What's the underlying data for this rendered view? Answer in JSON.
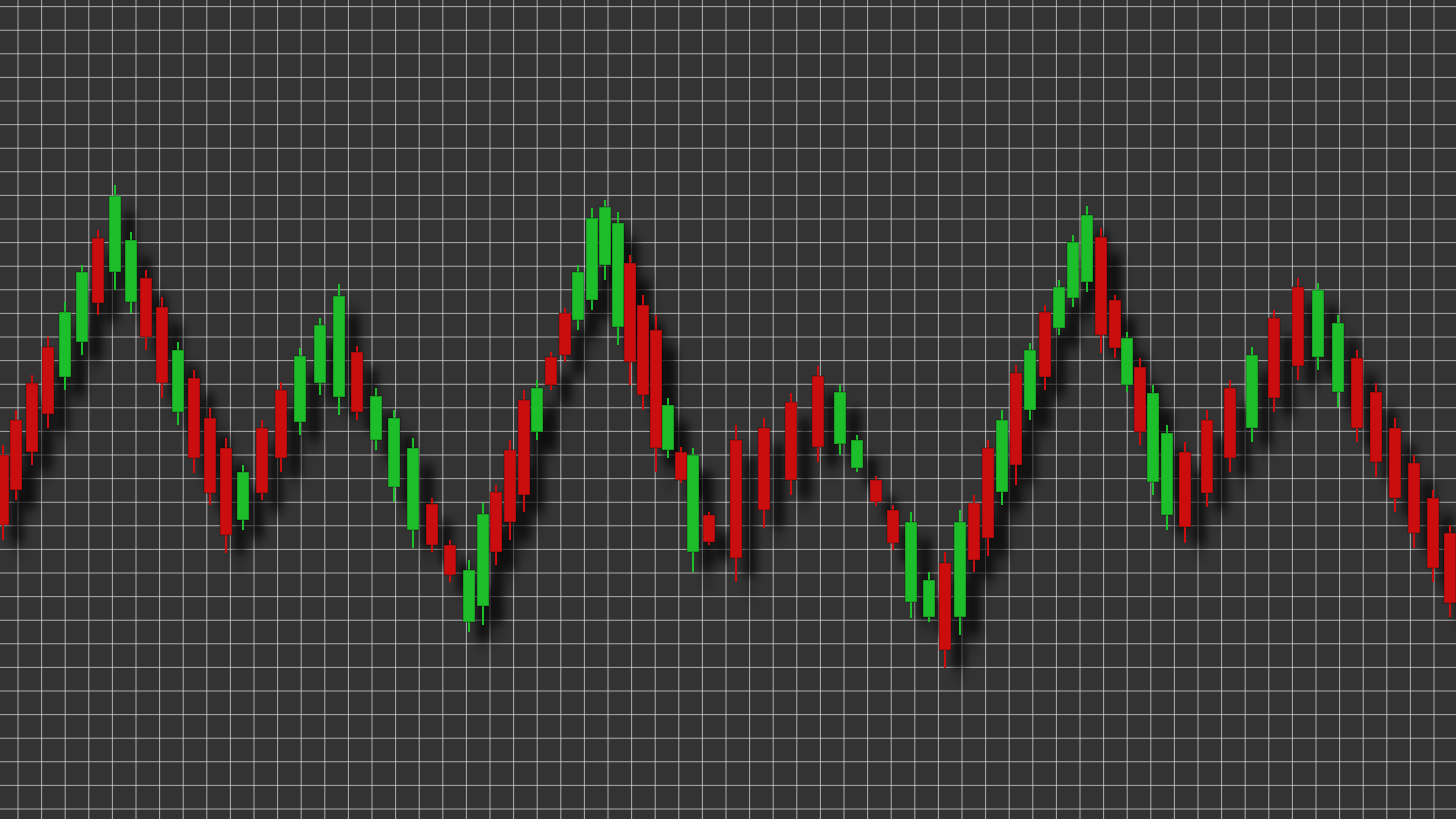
{
  "chart_data": {
    "type": "candlestick",
    "x": [
      3,
      16,
      32,
      48,
      65,
      82,
      98,
      115,
      131,
      146,
      162,
      178,
      194,
      210,
      226,
      243,
      262,
      281,
      300,
      320,
      339,
      357,
      376,
      394,
      413,
      432,
      450,
      469,
      483,
      496,
      510,
      524,
      537,
      551,
      565,
      578,
      592,
      605,
      618,
      630,
      643,
      656,
      668,
      681,
      693,
      709,
      736,
      764,
      791,
      818,
      840,
      857,
      876,
      893,
      911,
      929,
      945,
      960,
      974,
      988,
      1002,
      1016,
      1030,
      1045,
      1059,
      1073,
      1087,
      1101,
      1115,
      1127,
      1140,
      1153,
      1167,
      1185,
      1207,
      1230,
      1252,
      1274,
      1298,
      1318,
      1338,
      1357,
      1376,
      1395,
      1414,
      1433,
      1450
    ],
    "open": [
      364,
      399,
      436,
      472,
      442,
      477,
      581,
      547,
      517,
      541,
      512,
      407,
      441,
      401,
      371,
      299,
      391,
      429,
      397,
      436,
      422,
      467,
      379,
      332,
      289,
      315,
      274,
      197,
      213,
      327,
      369,
      419,
      387,
      462,
      506,
      499,
      519,
      554,
      492,
      556,
      514,
      489,
      369,
      367,
      267,
      304,
      379,
      391,
      417,
      443,
      375,
      351,
      339,
      309,
      217,
      202,
      256,
      202,
      316,
      371,
      327,
      446,
      409,
      507,
      491,
      521,
      537,
      582,
      519,
      434,
      452,
      337,
      304,
      367,
      399,
      431,
      391,
      501,
      532,
      462,
      427,
      461,
      427,
      391,
      356,
      321,
      286
    ],
    "high": [
      374,
      409,
      444,
      482,
      517,
      554,
      589,
      634,
      587,
      549,
      522,
      477,
      449,
      411,
      381,
      354,
      399,
      437,
      471,
      501,
      535,
      473,
      431,
      409,
      381,
      321,
      279,
      259,
      316,
      334,
      379,
      429,
      439,
      467,
      511,
      554,
      611,
      619,
      607,
      564,
      524,
      504,
      421,
      372,
      371,
      307,
      394,
      401,
      426,
      453,
      434,
      384,
      343,
      314,
      307,
      247,
      267,
      309,
      324,
      379,
      409,
      454,
      476,
      514,
      539,
      584,
      613,
      591,
      524,
      487,
      461,
      434,
      394,
      377,
      409,
      439,
      472,
      509,
      541,
      536,
      504,
      469,
      436,
      401,
      364,
      329,
      294
    ],
    "low": [
      279,
      319,
      354,
      391,
      429,
      464,
      504,
      529,
      506,
      469,
      421,
      394,
      346,
      314,
      266,
      289,
      319,
      347,
      384,
      424,
      404,
      399,
      369,
      317,
      271,
      267,
      237,
      187,
      194,
      254,
      279,
      307,
      379,
      429,
      457,
      489,
      509,
      539,
      474,
      434,
      409,
      347,
      361,
      336,
      247,
      274,
      237,
      291,
      324,
      357,
      364,
      347,
      313,
      269,
      201,
      197,
      151,
      184,
      247,
      263,
      314,
      334,
      399,
      429,
      484,
      512,
      527,
      466,
      461,
      427,
      374,
      324,
      289,
      276,
      312,
      347,
      377,
      407,
      439,
      449,
      412,
      377,
      342,
      307,
      271,
      237,
      202
    ],
    "close": [
      294,
      329,
      367,
      405,
      507,
      547,
      516,
      623,
      579,
      482,
      436,
      469,
      361,
      326,
      284,
      347,
      326,
      361,
      463,
      494,
      523,
      407,
      423,
      401,
      371,
      274,
      244,
      249,
      305,
      267,
      297,
      324,
      431,
      434,
      464,
      547,
      601,
      612,
      596,
      457,
      424,
      371,
      414,
      339,
      364,
      277,
      261,
      309,
      339,
      372,
      427,
      379,
      317,
      276,
      297,
      239,
      169,
      297,
      259,
      281,
      399,
      354,
      469,
      442,
      532,
      577,
      604,
      484,
      471,
      481,
      387,
      426,
      386,
      292,
      326,
      361,
      464,
      421,
      453,
      529,
      496,
      391,
      357,
      321,
      286,
      251,
      216
    ],
    "up_color": "#1fbf2a",
    "down_color": "#cc1111",
    "background": "#333333",
    "grid": true,
    "grid_color": "#d8d8d8",
    "xlim": [
      0,
      1456
    ],
    "ylim": [
      0,
      819
    ],
    "xticks": [
      18,
      41.6,
      65.2,
      88.8,
      112.4,
      136,
      159.6,
      183.2,
      206.8,
      230.4,
      254,
      277.6,
      301.2,
      324.8,
      348.4,
      372,
      395.6,
      419.2,
      442.8,
      466.4,
      490,
      513.6,
      537.2,
      560.8,
      584.4,
      608,
      631.6,
      655.2,
      678.8,
      702.4,
      726,
      749.6,
      773.2,
      796.8,
      820.4,
      844,
      867.6,
      891.2,
      914.8,
      938.4,
      962,
      985.6,
      1009.2,
      1032.8,
      1056.4,
      1080,
      1103.6,
      1127.2,
      1150.8,
      1174.4,
      1198,
      1221.6,
      1245.2,
      1268.8,
      1292.4,
      1316,
      1339.6,
      1363.2,
      1386.8,
      1410.4,
      1434
    ],
    "yticks": [
      10,
      33.6,
      57.2,
      80.8,
      104.4,
      128,
      151.6,
      175.2,
      198.8,
      222.4,
      246,
      269.6,
      293.2,
      316.8,
      340.4,
      364,
      387.6,
      411.2,
      434.8,
      458.4,
      482,
      505.6,
      529.2,
      552.8,
      576.4,
      600,
      623.6,
      647.2,
      670.8,
      694.4,
      718,
      741.6,
      765.2,
      788.8,
      812.4
    ]
  }
}
